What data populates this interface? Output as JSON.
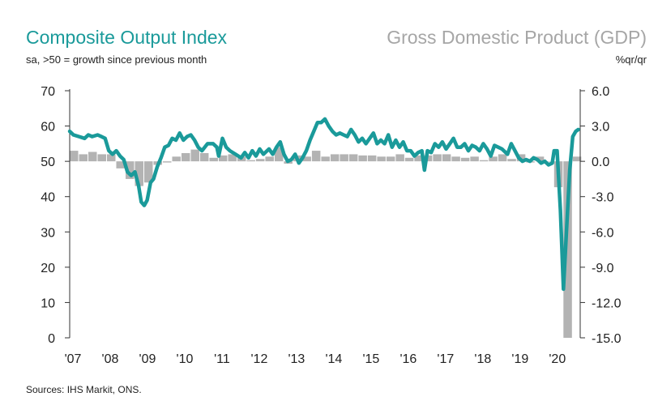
{
  "titles": {
    "left": "Composite Output Index",
    "left_sub": "sa, >50 = growth since previous month",
    "right": "Gross Domestic Product (GDP)",
    "right_sub": "%qr/qr",
    "source": "Sources: IHS Markit, ONS."
  },
  "colors": {
    "pmi_line": "#1a9a9a",
    "gdp_bars": "#b3b3b3",
    "axis": "#333333"
  },
  "chart_data": {
    "type": "bar+line",
    "title": "Composite Output Index / Gross Domestic Product (GDP)",
    "x_ticks": [
      "'07",
      "'08",
      "'09",
      "'10",
      "'11",
      "'12",
      "'13",
      "'14",
      "'15",
      "'16",
      "'17",
      "'18",
      "'19",
      "'20"
    ],
    "y_left": {
      "label": "sa, >50 = growth since previous month",
      "range": [
        0,
        70
      ],
      "ticks": [
        "0",
        "10",
        "20",
        "30",
        "40",
        "50",
        "60",
        "70"
      ]
    },
    "y_right": {
      "label": "%qr/qr",
      "range": [
        -15.0,
        6.0
      ],
      "ticks": [
        "-15.0",
        "-12.0",
        "-9.0",
        "-6.0",
        "-3.0",
        "0.0",
        "3.0",
        "6.0"
      ]
    },
    "series": [
      {
        "name": "Composite Output Index",
        "axis": "left",
        "type": "line",
        "points": [
          [
            2007.0,
            58.5
          ],
          [
            2007.1,
            57.5
          ],
          [
            2007.25,
            57
          ],
          [
            2007.4,
            56.5
          ],
          [
            2007.5,
            57.5
          ],
          [
            2007.6,
            57
          ],
          [
            2007.75,
            57.5
          ],
          [
            2007.85,
            57
          ],
          [
            2007.95,
            56.5
          ],
          [
            2008.05,
            53
          ],
          [
            2008.15,
            52
          ],
          [
            2008.25,
            53
          ],
          [
            2008.35,
            51.5
          ],
          [
            2008.45,
            50.5
          ],
          [
            2008.55,
            47
          ],
          [
            2008.65,
            46
          ],
          [
            2008.75,
            47
          ],
          [
            2008.85,
            43
          ],
          [
            2008.92,
            38.5
          ],
          [
            2009.0,
            37.5
          ],
          [
            2009.08,
            39
          ],
          [
            2009.17,
            44
          ],
          [
            2009.25,
            45
          ],
          [
            2009.35,
            48.5
          ],
          [
            2009.45,
            51
          ],
          [
            2009.55,
            54
          ],
          [
            2009.65,
            54.5
          ],
          [
            2009.75,
            56.5
          ],
          [
            2009.85,
            56
          ],
          [
            2009.95,
            58
          ],
          [
            2010.05,
            56
          ],
          [
            2010.15,
            57
          ],
          [
            2010.25,
            57.5
          ],
          [
            2010.35,
            56
          ],
          [
            2010.45,
            54
          ],
          [
            2010.55,
            53
          ],
          [
            2010.7,
            55
          ],
          [
            2010.85,
            55
          ],
          [
            2010.95,
            54
          ],
          [
            2011.0,
            51.5
          ],
          [
            2011.1,
            56.5
          ],
          [
            2011.2,
            54
          ],
          [
            2011.3,
            53
          ],
          [
            2011.45,
            52
          ],
          [
            2011.6,
            51
          ],
          [
            2011.7,
            52.5
          ],
          [
            2011.8,
            51
          ],
          [
            2011.9,
            53
          ],
          [
            2012.0,
            51.5
          ],
          [
            2012.1,
            53.5
          ],
          [
            2012.2,
            52
          ],
          [
            2012.35,
            53.5
          ],
          [
            2012.45,
            52
          ],
          [
            2012.55,
            54
          ],
          [
            2012.65,
            55.5
          ],
          [
            2012.75,
            52
          ],
          [
            2012.85,
            50
          ],
          [
            2012.95,
            50.5
          ],
          [
            2013.05,
            52
          ],
          [
            2013.15,
            49.5
          ],
          [
            2013.25,
            51
          ],
          [
            2013.35,
            53
          ],
          [
            2013.45,
            56
          ],
          [
            2013.55,
            58.5
          ],
          [
            2013.65,
            61
          ],
          [
            2013.75,
            61
          ],
          [
            2013.85,
            62
          ],
          [
            2013.95,
            60
          ],
          [
            2014.05,
            58.5
          ],
          [
            2014.15,
            57.5
          ],
          [
            2014.25,
            58
          ],
          [
            2014.35,
            57.5
          ],
          [
            2014.45,
            57
          ],
          [
            2014.55,
            59
          ],
          [
            2014.65,
            57.5
          ],
          [
            2014.75,
            55.5
          ],
          [
            2014.85,
            56.5
          ],
          [
            2014.95,
            55
          ],
          [
            2015.05,
            56.5
          ],
          [
            2015.15,
            58
          ],
          [
            2015.25,
            55
          ],
          [
            2015.35,
            56
          ],
          [
            2015.45,
            55
          ],
          [
            2015.55,
            57.5
          ],
          [
            2015.65,
            54
          ],
          [
            2015.75,
            56
          ],
          [
            2015.85,
            54
          ],
          [
            2015.95,
            55.5
          ],
          [
            2016.05,
            53
          ],
          [
            2016.15,
            53
          ],
          [
            2016.25,
            51.5
          ],
          [
            2016.35,
            52.5
          ],
          [
            2016.45,
            53
          ],
          [
            2016.52,
            47.5
          ],
          [
            2016.6,
            53
          ],
          [
            2016.7,
            52.5
          ],
          [
            2016.8,
            55
          ],
          [
            2016.9,
            54
          ],
          [
            2017.0,
            55.5
          ],
          [
            2017.1,
            53.5
          ],
          [
            2017.2,
            55
          ],
          [
            2017.3,
            56.5
          ],
          [
            2017.4,
            54
          ],
          [
            2017.5,
            54
          ],
          [
            2017.6,
            55
          ],
          [
            2017.7,
            53
          ],
          [
            2017.8,
            54.5
          ],
          [
            2017.9,
            54
          ],
          [
            2018.0,
            53
          ],
          [
            2018.1,
            55
          ],
          [
            2018.2,
            53.5
          ],
          [
            2018.3,
            51.5
          ],
          [
            2018.4,
            54.5
          ],
          [
            2018.5,
            54
          ],
          [
            2018.6,
            53.5
          ],
          [
            2018.75,
            52
          ],
          [
            2018.85,
            55
          ],
          [
            2018.95,
            53
          ],
          [
            2019.05,
            51
          ],
          [
            2019.15,
            50
          ],
          [
            2019.25,
            50.5
          ],
          [
            2019.35,
            50
          ],
          [
            2019.45,
            51
          ],
          [
            2019.55,
            50.5
          ],
          [
            2019.65,
            49.5
          ],
          [
            2019.75,
            50
          ],
          [
            2019.85,
            49
          ],
          [
            2019.95,
            49.5
          ],
          [
            2020.0,
            53
          ],
          [
            2020.08,
            53
          ],
          [
            2020.17,
            36
          ],
          [
            2020.25,
            13.8
          ],
          [
            2020.33,
            30
          ],
          [
            2020.42,
            47.5
          ],
          [
            2020.5,
            57
          ],
          [
            2020.58,
            58.5
          ],
          [
            2020.65,
            59
          ]
        ]
      },
      {
        "name": "Gross Domestic Product (GDP)",
        "axis": "right",
        "type": "bar",
        "points": [
          [
            2007.0,
            0.9
          ],
          [
            2007.25,
            0.6
          ],
          [
            2007.5,
            0.8
          ],
          [
            2007.75,
            0.6
          ],
          [
            2008.0,
            0.6
          ],
          [
            2008.25,
            -0.6
          ],
          [
            2008.5,
            -1.5
          ],
          [
            2008.75,
            -2.1
          ],
          [
            2009.0,
            -1.8
          ],
          [
            2009.25,
            -0.3
          ],
          [
            2009.5,
            -0.1
          ],
          [
            2009.75,
            0.4
          ],
          [
            2010.0,
            0.7
          ],
          [
            2010.25,
            1.0
          ],
          [
            2010.5,
            0.7
          ],
          [
            2010.75,
            0.3
          ],
          [
            2011.0,
            0.5
          ],
          [
            2011.25,
            0.6
          ],
          [
            2011.5,
            0.4
          ],
          [
            2011.75,
            0.1
          ],
          [
            2012.0,
            0.2
          ],
          [
            2012.25,
            0.4
          ],
          [
            2012.5,
            1.2
          ],
          [
            2012.75,
            -0.2
          ],
          [
            2013.0,
            0.5
          ],
          [
            2013.25,
            0.4
          ],
          [
            2013.5,
            0.9
          ],
          [
            2013.75,
            0.4
          ],
          [
            2014.0,
            0.6
          ],
          [
            2014.25,
            0.6
          ],
          [
            2014.5,
            0.6
          ],
          [
            2014.75,
            0.5
          ],
          [
            2015.0,
            0.5
          ],
          [
            2015.25,
            0.4
          ],
          [
            2015.5,
            0.4
          ],
          [
            2015.75,
            0.6
          ],
          [
            2016.0,
            0.3
          ],
          [
            2016.25,
            0.5
          ],
          [
            2016.5,
            0.5
          ],
          [
            2016.75,
            0.6
          ],
          [
            2017.0,
            0.6
          ],
          [
            2017.25,
            0.4
          ],
          [
            2017.5,
            0.3
          ],
          [
            2017.75,
            0.4
          ],
          [
            2018.0,
            0.1
          ],
          [
            2018.25,
            0.4
          ],
          [
            2018.5,
            0.6
          ],
          [
            2018.75,
            0.2
          ],
          [
            2019.0,
            0.6
          ],
          [
            2019.25,
            -0.1
          ],
          [
            2019.5,
            0.4
          ],
          [
            2019.75,
            0.0
          ],
          [
            2020.0,
            -2.2
          ],
          [
            2020.25,
            -15.0
          ],
          [
            2020.5,
            0.4
          ]
        ]
      }
    ]
  }
}
